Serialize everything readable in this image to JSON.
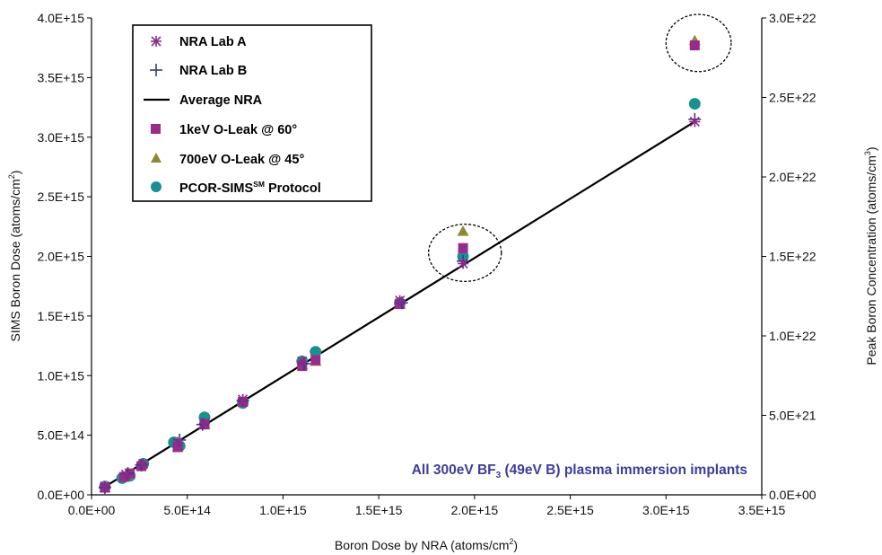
{
  "chart_data": {
    "type": "scatter",
    "xlabel": "Boron Dose by NRA (atoms/cm",
    "xlabel_sup": "2",
    "xlabel_end": ")",
    "ylabel": "SIMS Boron Dose (atoms/cm",
    "ylabel_sup": "2",
    "ylabel_end": ")",
    "y2label": "Peak Boron Concentration (atoms/cm",
    "y2label_sup": "3",
    "y2label_end": ")",
    "xlim": [
      0,
      3500000000000000.0
    ],
    "ylim": [
      0,
      4000000000000000.0
    ],
    "y2lim": [
      0,
      3e+22
    ],
    "xticks": [
      0,
      500000000000000.0,
      1000000000000000.0,
      1500000000000000.0,
      2000000000000000.0,
      2500000000000000.0,
      3000000000000000.0,
      3500000000000000.0
    ],
    "xtick_labels": [
      "0.0E+00",
      "5.0E+14",
      "1.0E+15",
      "1.5E+15",
      "2.0E+15",
      "2.5E+15",
      "3.0E+15",
      "3.5E+15"
    ],
    "yticks": [
      0,
      500000000000000.0,
      1000000000000000.0,
      1500000000000000.0,
      2000000000000000.0,
      2500000000000000.0,
      3000000000000000.0,
      3500000000000000.0,
      4000000000000000.0
    ],
    "ytick_labels": [
      "0.0E+00",
      "5.0E+14",
      "1.0E+15",
      "1.5E+15",
      "2.0E+15",
      "2.5E+15",
      "3.0E+15",
      "3.5E+15",
      "4.0E+15"
    ],
    "y2ticks": [
      0,
      5e+21,
      1e+22,
      1.5e+22,
      2e+22,
      2.5e+22,
      3e+22
    ],
    "y2tick_labels": [
      "0.0E+00",
      "5.0E+21",
      "1.0E+22",
      "1.5E+22",
      "2.0E+22",
      "2.5E+22",
      "3.0E+22"
    ],
    "grid": false,
    "legend_position": "top-left",
    "series": [
      {
        "name": "NRA Lab A",
        "marker": "asterisk",
        "color": "#8a2a8a",
        "points": [
          [
            70000000000000.0,
            70000000000000.0
          ],
          [
            180000000000000.0,
            170000000000000.0
          ],
          [
            270000000000000.0,
            260000000000000.0
          ],
          [
            450000000000000.0,
            440000000000000.0
          ],
          [
            590000000000000.0,
            600000000000000.0
          ],
          [
            790000000000000.0,
            800000000000000.0
          ],
          [
            1100000000000000.0,
            1120000000000000.0
          ],
          [
            1610000000000000.0,
            1630000000000000.0
          ],
          [
            1940000000000000.0,
            1940000000000000.0
          ],
          [
            3150000000000000.0,
            3130000000000000.0
          ]
        ]
      },
      {
        "name": "NRA Lab B",
        "marker": "plus",
        "color": "#3a3a86",
        "points": [
          [
            70000000000000.0,
            60000000000000.0
          ],
          [
            190000000000000.0,
            180000000000000.0
          ],
          [
            260000000000000.0,
            250000000000000.0
          ],
          [
            460000000000000.0,
            460000000000000.0
          ],
          [
            580000000000000.0,
            590000000000000.0
          ],
          [
            790000000000000.0,
            790000000000000.0
          ],
          [
            1110000000000000.0,
            1100000000000000.0
          ],
          [
            1620000000000000.0,
            1610000000000000.0
          ],
          [
            1940000000000000.0,
            1960000000000000.0
          ],
          [
            3150000000000000.0,
            3150000000000000.0
          ]
        ]
      },
      {
        "name": "Average NRA",
        "marker": "line",
        "color": "#000000",
        "line": [
          [
            70000000000000.0,
            68000000000000.0
          ],
          [
            3150000000000000.0,
            3130000000000000.0
          ]
        ]
      },
      {
        "name": "1keV O-Leak @ 60°",
        "marker": "square",
        "color": "#9a2a8e",
        "points": [
          [
            70000000000000.0,
            60000000000000.0
          ],
          [
            170000000000000.0,
            150000000000000.0
          ],
          [
            200000000000000.0,
            180000000000000.0
          ],
          [
            260000000000000.0,
            240000000000000.0
          ],
          [
            450000000000000.0,
            400000000000000.0
          ],
          [
            590000000000000.0,
            590000000000000.0
          ],
          [
            790000000000000.0,
            780000000000000.0
          ],
          [
            1100000000000000.0,
            1080000000000000.0
          ],
          [
            1170000000000000.0,
            1130000000000000.0
          ],
          [
            1610000000000000.0,
            1600000000000000.0
          ],
          [
            1940000000000000.0,
            2070000000000000.0
          ],
          [
            3150000000000000.0,
            3770000000000000.0
          ]
        ]
      },
      {
        "name": "700eV O-Leak @ 45°",
        "marker": "triangle",
        "color": "#8a8a33",
        "points": [
          [
            70000000000000.0,
            60000000000000.0
          ],
          [
            170000000000000.0,
            150000000000000.0
          ],
          [
            200000000000000.0,
            170000000000000.0
          ],
          [
            260000000000000.0,
            250000000000000.0
          ],
          [
            450000000000000.0,
            400000000000000.0
          ],
          [
            590000000000000.0,
            590000000000000.0
          ],
          [
            790000000000000.0,
            780000000000000.0
          ],
          [
            1100000000000000.0,
            1090000000000000.0
          ],
          [
            1170000000000000.0,
            1120000000000000.0
          ],
          [
            1610000000000000.0,
            1600000000000000.0
          ],
          [
            1940000000000000.0,
            2210000000000000.0
          ],
          [
            3150000000000000.0,
            3810000000000000.0
          ]
        ]
      },
      {
        "name": "PCOR-SIMS",
        "name_sup": "SM",
        "name_end": " Protocol",
        "marker": "circle",
        "color": "#1a9090",
        "points": [
          [
            70000000000000.0,
            70000000000000.0
          ],
          [
            160000000000000.0,
            140000000000000.0
          ],
          [
            200000000000000.0,
            160000000000000.0
          ],
          [
            270000000000000.0,
            260000000000000.0
          ],
          [
            430000000000000.0,
            440000000000000.0
          ],
          [
            460000000000000.0,
            410000000000000.0
          ],
          [
            590000000000000.0,
            650000000000000.0
          ],
          [
            790000000000000.0,
            770000000000000.0
          ],
          [
            1100000000000000.0,
            1120000000000000.0
          ],
          [
            1170000000000000.0,
            1200000000000000.0
          ],
          [
            1610000000000000.0,
            1610000000000000.0
          ],
          [
            1940000000000000.0,
            2000000000000000.0
          ],
          [
            3150000000000000.0,
            3280000000000000.0
          ]
        ]
      }
    ],
    "annotation": {
      "text": "All 300eV BF",
      "sub": "3",
      "text_end": " (49eV B) plasma immersion implants"
    },
    "highlight_ellipses": [
      {
        "cx": 1950000000000000.0,
        "cy": 2030000000000000.0,
        "rx": 190000000000000.0,
        "ry": 240000000000000.0
      },
      {
        "cx": 3170000000000000.0,
        "cy": 3790000000000000.0,
        "rx": 170000000000000.0,
        "ry": 240000000000000.0
      }
    ]
  }
}
